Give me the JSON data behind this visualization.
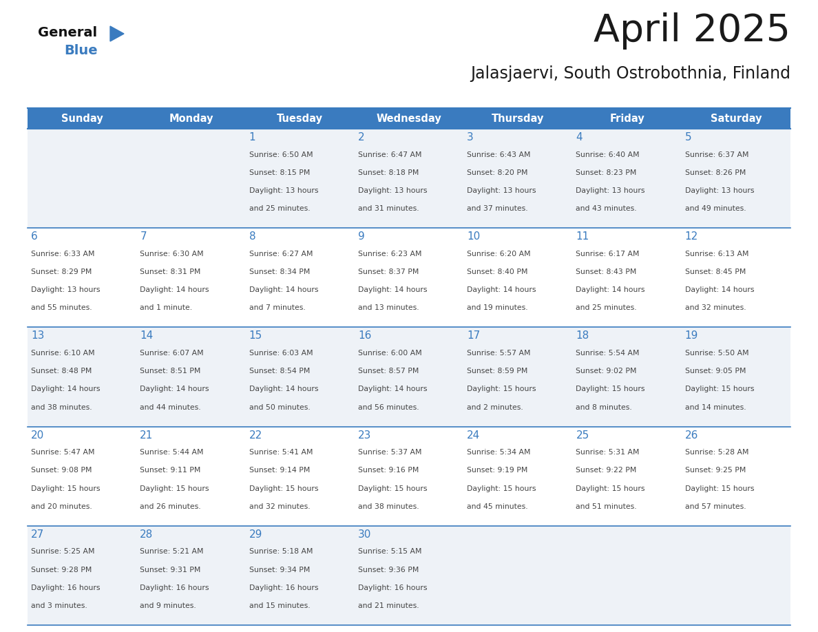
{
  "title": "April 2025",
  "subtitle": "Jalasjaervi, South Ostrobothnia, Finland",
  "days_of_week": [
    "Sunday",
    "Monday",
    "Tuesday",
    "Wednesday",
    "Thursday",
    "Friday",
    "Saturday"
  ],
  "header_bg_color": "#3a7bbf",
  "header_text_color": "#ffffff",
  "row_bg_even": "#eef2f7",
  "row_bg_odd": "#ffffff",
  "grid_line_color": "#3a7bbf",
  "day_number_color": "#3a7bbf",
  "cell_text_color": "#444444",
  "title_color": "#1a1a1a",
  "subtitle_color": "#1a1a1a",
  "logo_general_color": "#111111",
  "logo_blue_color": "#3a7bbf",
  "fig_width": 11.88,
  "fig_height": 9.18,
  "dpi": 100,
  "calendar_data": [
    {
      "day": 1,
      "col": 2,
      "row": 0,
      "sunrise": "6:50 AM",
      "sunset": "8:15 PM",
      "daylight": "13 hours and 25 minutes."
    },
    {
      "day": 2,
      "col": 3,
      "row": 0,
      "sunrise": "6:47 AM",
      "sunset": "8:18 PM",
      "daylight": "13 hours and 31 minutes."
    },
    {
      "day": 3,
      "col": 4,
      "row": 0,
      "sunrise": "6:43 AM",
      "sunset": "8:20 PM",
      "daylight": "13 hours and 37 minutes."
    },
    {
      "day": 4,
      "col": 5,
      "row": 0,
      "sunrise": "6:40 AM",
      "sunset": "8:23 PM",
      "daylight": "13 hours and 43 minutes."
    },
    {
      "day": 5,
      "col": 6,
      "row": 0,
      "sunrise": "6:37 AM",
      "sunset": "8:26 PM",
      "daylight": "13 hours and 49 minutes."
    },
    {
      "day": 6,
      "col": 0,
      "row": 1,
      "sunrise": "6:33 AM",
      "sunset": "8:29 PM",
      "daylight": "13 hours and 55 minutes."
    },
    {
      "day": 7,
      "col": 1,
      "row": 1,
      "sunrise": "6:30 AM",
      "sunset": "8:31 PM",
      "daylight": "14 hours and 1 minute."
    },
    {
      "day": 8,
      "col": 2,
      "row": 1,
      "sunrise": "6:27 AM",
      "sunset": "8:34 PM",
      "daylight": "14 hours and 7 minutes."
    },
    {
      "day": 9,
      "col": 3,
      "row": 1,
      "sunrise": "6:23 AM",
      "sunset": "8:37 PM",
      "daylight": "14 hours and 13 minutes."
    },
    {
      "day": 10,
      "col": 4,
      "row": 1,
      "sunrise": "6:20 AM",
      "sunset": "8:40 PM",
      "daylight": "14 hours and 19 minutes."
    },
    {
      "day": 11,
      "col": 5,
      "row": 1,
      "sunrise": "6:17 AM",
      "sunset": "8:43 PM",
      "daylight": "14 hours and 25 minutes."
    },
    {
      "day": 12,
      "col": 6,
      "row": 1,
      "sunrise": "6:13 AM",
      "sunset": "8:45 PM",
      "daylight": "14 hours and 32 minutes."
    },
    {
      "day": 13,
      "col": 0,
      "row": 2,
      "sunrise": "6:10 AM",
      "sunset": "8:48 PM",
      "daylight": "14 hours and 38 minutes."
    },
    {
      "day": 14,
      "col": 1,
      "row": 2,
      "sunrise": "6:07 AM",
      "sunset": "8:51 PM",
      "daylight": "14 hours and 44 minutes."
    },
    {
      "day": 15,
      "col": 2,
      "row": 2,
      "sunrise": "6:03 AM",
      "sunset": "8:54 PM",
      "daylight": "14 hours and 50 minutes."
    },
    {
      "day": 16,
      "col": 3,
      "row": 2,
      "sunrise": "6:00 AM",
      "sunset": "8:57 PM",
      "daylight": "14 hours and 56 minutes."
    },
    {
      "day": 17,
      "col": 4,
      "row": 2,
      "sunrise": "5:57 AM",
      "sunset": "8:59 PM",
      "daylight": "15 hours and 2 minutes."
    },
    {
      "day": 18,
      "col": 5,
      "row": 2,
      "sunrise": "5:54 AM",
      "sunset": "9:02 PM",
      "daylight": "15 hours and 8 minutes."
    },
    {
      "day": 19,
      "col": 6,
      "row": 2,
      "sunrise": "5:50 AM",
      "sunset": "9:05 PM",
      "daylight": "15 hours and 14 minutes."
    },
    {
      "day": 20,
      "col": 0,
      "row": 3,
      "sunrise": "5:47 AM",
      "sunset": "9:08 PM",
      "daylight": "15 hours and 20 minutes."
    },
    {
      "day": 21,
      "col": 1,
      "row": 3,
      "sunrise": "5:44 AM",
      "sunset": "9:11 PM",
      "daylight": "15 hours and 26 minutes."
    },
    {
      "day": 22,
      "col": 2,
      "row": 3,
      "sunrise": "5:41 AM",
      "sunset": "9:14 PM",
      "daylight": "15 hours and 32 minutes."
    },
    {
      "day": 23,
      "col": 3,
      "row": 3,
      "sunrise": "5:37 AM",
      "sunset": "9:16 PM",
      "daylight": "15 hours and 38 minutes."
    },
    {
      "day": 24,
      "col": 4,
      "row": 3,
      "sunrise": "5:34 AM",
      "sunset": "9:19 PM",
      "daylight": "15 hours and 45 minutes."
    },
    {
      "day": 25,
      "col": 5,
      "row": 3,
      "sunrise": "5:31 AM",
      "sunset": "9:22 PM",
      "daylight": "15 hours and 51 minutes."
    },
    {
      "day": 26,
      "col": 6,
      "row": 3,
      "sunrise": "5:28 AM",
      "sunset": "9:25 PM",
      "daylight": "15 hours and 57 minutes."
    },
    {
      "day": 27,
      "col": 0,
      "row": 4,
      "sunrise": "5:25 AM",
      "sunset": "9:28 PM",
      "daylight": "16 hours and 3 minutes."
    },
    {
      "day": 28,
      "col": 1,
      "row": 4,
      "sunrise": "5:21 AM",
      "sunset": "9:31 PM",
      "daylight": "16 hours and 9 minutes."
    },
    {
      "day": 29,
      "col": 2,
      "row": 4,
      "sunrise": "5:18 AM",
      "sunset": "9:34 PM",
      "daylight": "16 hours and 15 minutes."
    },
    {
      "day": 30,
      "col": 3,
      "row": 4,
      "sunrise": "5:15 AM",
      "sunset": "9:36 PM",
      "daylight": "16 hours and 21 minutes."
    }
  ]
}
